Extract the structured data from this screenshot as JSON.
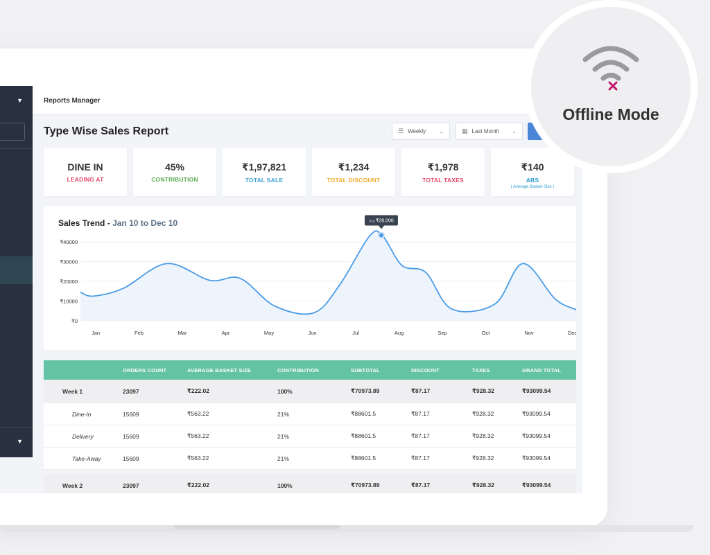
{
  "breadcrumb": "Reports Manager",
  "page_title": "Type Wise Sales Report",
  "filters": {
    "period": "Weekly",
    "range": "Last Month"
  },
  "stats": [
    {
      "value": "DINE IN",
      "label": "LEADING AT",
      "color": "#e0486c"
    },
    {
      "value": "45%",
      "label": "CONTRIBUTION",
      "color": "#5aaa52"
    },
    {
      "value": "₹1,97,821",
      "label": "TOTAL SALE",
      "color": "#3fa1d8"
    },
    {
      "value": "₹1,234",
      "label": "TOTAL DISCOUNT",
      "color": "#f2ab2b"
    },
    {
      "value": "₹1,978",
      "label": "TOTAL TAXES",
      "color": "#e0486c"
    },
    {
      "value": "₹140",
      "label": "ABS",
      "sub": "( Average Basket Size )",
      "color": "#2b9fcf"
    }
  ],
  "chart_data": {
    "type": "area",
    "title": "Sales Trend",
    "subtitle": "Jan 10 to Dec 10",
    "categories": [
      "Jan",
      "Feb",
      "Mar",
      "Apr",
      "May",
      "Jun",
      "Jul",
      "Aug",
      "Sep",
      "Oct",
      "Nov",
      "Dec"
    ],
    "yticks": [
      "₹0",
      "₹10000",
      "₹20000",
      "₹30000",
      "₹40000"
    ],
    "ylim": [
      0,
      40000
    ],
    "points": [
      {
        "x": 0.0,
        "y": 14500
      },
      {
        "x": 0.3,
        "y": 12500
      },
      {
        "x": 1.0,
        "y": 16500
      },
      {
        "x": 2.0,
        "y": 29000
      },
      {
        "x": 3.0,
        "y": 20500
      },
      {
        "x": 3.7,
        "y": 21500
      },
      {
        "x": 4.5,
        "y": 7500
      },
      {
        "x": 5.4,
        "y": 4000
      },
      {
        "x": 6.0,
        "y": 18000
      },
      {
        "x": 6.7,
        "y": 43000
      },
      {
        "x": 7.0,
        "y": 43000
      },
      {
        "x": 7.45,
        "y": 28000
      },
      {
        "x": 8.0,
        "y": 24500
      },
      {
        "x": 8.6,
        "y": 6000
      },
      {
        "x": 9.6,
        "y": 8500
      },
      {
        "x": 10.25,
        "y": 29000
      },
      {
        "x": 11.0,
        "y": 11000
      },
      {
        "x": 11.5,
        "y": 5500
      }
    ],
    "tooltip": {
      "month": "Aug",
      "value": "₹28,000"
    },
    "line_color": "#4a9be6",
    "fill_color": "#e8f1fb",
    "grid": true
  },
  "table": {
    "headers": [
      "",
      "ORDERS COUNT",
      "AVERAGE BASKET SIZE",
      "CONTRIBUTION",
      "SUBTOTAL",
      "DISCOUNT",
      "TAXES",
      "GRAND TOTAL"
    ],
    "rows": [
      {
        "kind": "week",
        "cells": [
          "Week 1",
          "23097",
          "₹222.02",
          "100%",
          "₹70973.89",
          "₹87.17",
          "₹928.32",
          "₹93099.54"
        ]
      },
      {
        "kind": "sub",
        "cells": [
          "Dine-In",
          "15609",
          "₹563.22",
          "21%",
          "₹88601.5",
          "₹87.17",
          "₹928.32",
          "₹93099.54"
        ]
      },
      {
        "kind": "sub",
        "cells": [
          "Delivery",
          "15609",
          "₹563.22",
          "21%",
          "₹88601.5",
          "₹87.17",
          "₹928.32",
          "₹93099.54"
        ]
      },
      {
        "kind": "sub",
        "cells": [
          "Take-Away",
          "15609",
          "₹563.22",
          "21%",
          "₹88601.5",
          "₹87.17",
          "₹928.32",
          "₹93099.54"
        ]
      },
      {
        "kind": "week",
        "cells": [
          "Week 2",
          "23097",
          "₹222.02",
          "100%",
          "₹70973.89",
          "₹87.17",
          "₹928.32",
          "₹93099.54"
        ]
      }
    ],
    "header_color": "#64c3a2"
  },
  "offline": {
    "label": "Offline Mode",
    "icon": "wifi-off-icon",
    "accent": "#c2186b"
  }
}
